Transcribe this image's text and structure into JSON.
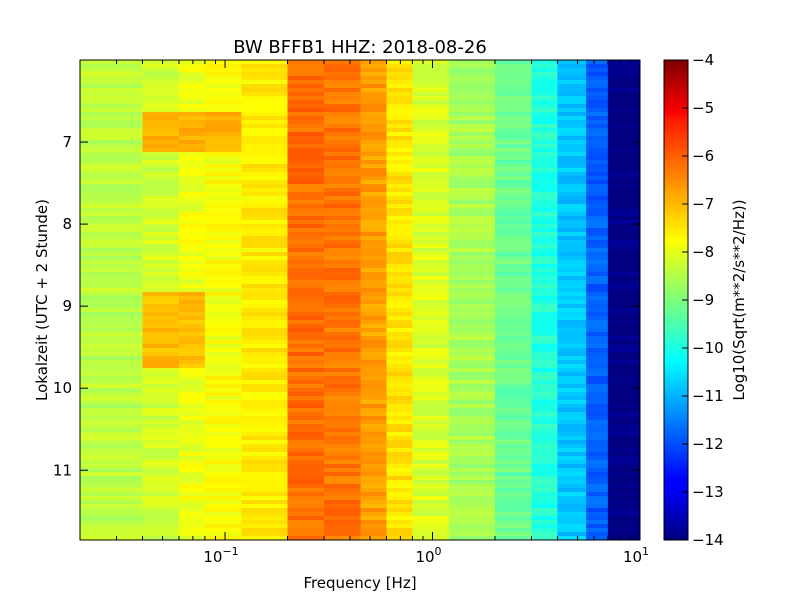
{
  "chart_data": {
    "type": "heatmap",
    "title": "BW BFFB1 HHZ: 2018-08-26",
    "xlabel": "Frequency [Hz]",
    "ylabel": "Lokalzeit (UTC + 2 Stunde)",
    "x_scale": "log",
    "xlim": [
      0.02,
      10
    ],
    "x_ticks": [
      {
        "value": 0.1,
        "base": "10",
        "exp": "−1"
      },
      {
        "value": 1,
        "base": "10",
        "exp": "0"
      },
      {
        "value": 10,
        "base": "10",
        "exp": "1"
      }
    ],
    "ylim": [
      6.0,
      11.85
    ],
    "y_inverted": true,
    "y_ticks": [
      "7",
      "8",
      "9",
      "10",
      "11"
    ],
    "colorbar": {
      "label": "Log10(Sqrt(m**2/s**2/Hz))",
      "colormap": "jet",
      "range": [
        -14,
        -4
      ],
      "ticks": [
        "−4",
        "−5",
        "−6",
        "−7",
        "−8",
        "−9",
        "−10",
        "−11",
        "−12",
        "−13",
        "−14"
      ]
    },
    "columns": [
      {
        "f_min": 0.02,
        "f_max": 0.04,
        "value": -8.4
      },
      {
        "f_min": 0.04,
        "f_max": 0.06,
        "value": -8.2
      },
      {
        "f_min": 0.06,
        "f_max": 0.08,
        "value": -7.9
      },
      {
        "f_min": 0.08,
        "f_max": 0.12,
        "value": -7.8
      },
      {
        "f_min": 0.12,
        "f_max": 0.2,
        "value": -7.6
      },
      {
        "f_min": 0.2,
        "f_max": 0.3,
        "value": -6.3
      },
      {
        "f_min": 0.3,
        "f_max": 0.45,
        "value": -6.4
      },
      {
        "f_min": 0.45,
        "f_max": 0.6,
        "value": -6.8
      },
      {
        "f_min": 0.6,
        "f_max": 0.8,
        "value": -7.5
      },
      {
        "f_min": 0.8,
        "f_max": 1.2,
        "value": -8.1
      },
      {
        "f_min": 1.2,
        "f_max": 2.0,
        "value": -8.6
      },
      {
        "f_min": 2.0,
        "f_max": 3.0,
        "value": -9.2
      },
      {
        "f_min": 3.0,
        "f_max": 4.0,
        "value": -9.9
      },
      {
        "f_min": 4.0,
        "f_max": 5.5,
        "value": -10.8
      },
      {
        "f_min": 5.5,
        "f_max": 7.0,
        "value": -11.8
      },
      {
        "f_min": 7.0,
        "f_max": 10.0,
        "value": -14.0
      }
    ],
    "anomalies": [
      {
        "f_min": 0.04,
        "f_max": 0.12,
        "t_start": 6.65,
        "t_end": 7.1,
        "value": -7.0
      },
      {
        "f_min": 0.04,
        "f_max": 0.1,
        "t_start": 8.85,
        "t_end": 9.75,
        "value": -7.1
      }
    ]
  }
}
